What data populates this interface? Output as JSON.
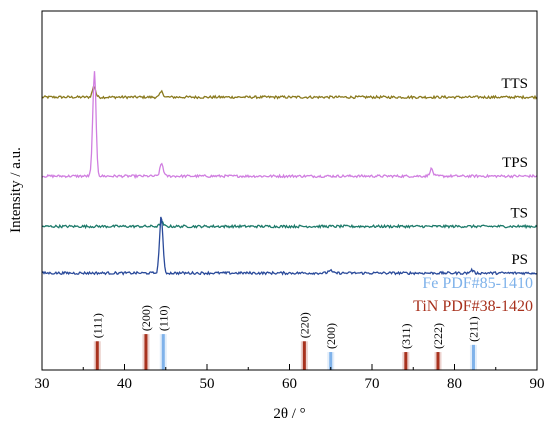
{
  "chart_data": {
    "type": "line",
    "xlabel": "2θ / °",
    "ylabel": "Intensity / a.u.",
    "xlim": [
      30,
      90
    ],
    "x_ticks": [
      30,
      40,
      50,
      60,
      70,
      80,
      90
    ],
    "x_tick_labels": [
      "30",
      "40",
      "50",
      "60",
      "70",
      "80",
      "90"
    ],
    "y_ticks_shown": false,
    "grid": false,
    "series": [
      {
        "name": "TTS",
        "color": "#8a7a1e",
        "baseline": 0.76,
        "peaks": [
          {
            "x": 36.3,
            "height": 0.03
          },
          {
            "x": 44.5,
            "height": 0.015
          }
        ]
      },
      {
        "name": "TPS",
        "color": "#d07ee0",
        "baseline": 0.54,
        "peaks": [
          {
            "x": 36.35,
            "height": 0.29
          },
          {
            "x": 44.5,
            "height": 0.035
          },
          {
            "x": 77.2,
            "height": 0.02
          }
        ]
      },
      {
        "name": "TS",
        "color": "#1d7a6a",
        "baseline": 0.4,
        "peaks": [
          {
            "x": 44.5,
            "height": 0.012
          }
        ]
      },
      {
        "name": "PS",
        "color": "#2a4a9a",
        "baseline": 0.27,
        "peaks": [
          {
            "x": 44.45,
            "height": 0.16
          },
          {
            "x": 64.9,
            "height": 0.008
          },
          {
            "x": 82.1,
            "height": 0.008
          }
        ]
      }
    ],
    "reference_patterns": [
      {
        "name": "Fe PDF#85-1410",
        "color": "#7fb2ea",
        "lines": [
          {
            "x": 44.7,
            "height": 0.1,
            "hkl": "(110)"
          },
          {
            "x": 65.0,
            "height": 0.05,
            "hkl": "(200)"
          },
          {
            "x": 82.3,
            "height": 0.07,
            "hkl": "(211)"
          }
        ]
      },
      {
        "name": "TiN PDF#38-1420",
        "color": "#a8321e",
        "lines": [
          {
            "x": 36.7,
            "height": 0.08,
            "hkl": "(111)"
          },
          {
            "x": 42.6,
            "height": 0.1,
            "hkl": "(200)"
          },
          {
            "x": 61.8,
            "height": 0.08,
            "hkl": "(220)"
          },
          {
            "x": 74.1,
            "height": 0.05,
            "hkl": "(311)"
          },
          {
            "x": 78.0,
            "height": 0.05,
            "hkl": "(222)"
          }
        ]
      }
    ]
  }
}
